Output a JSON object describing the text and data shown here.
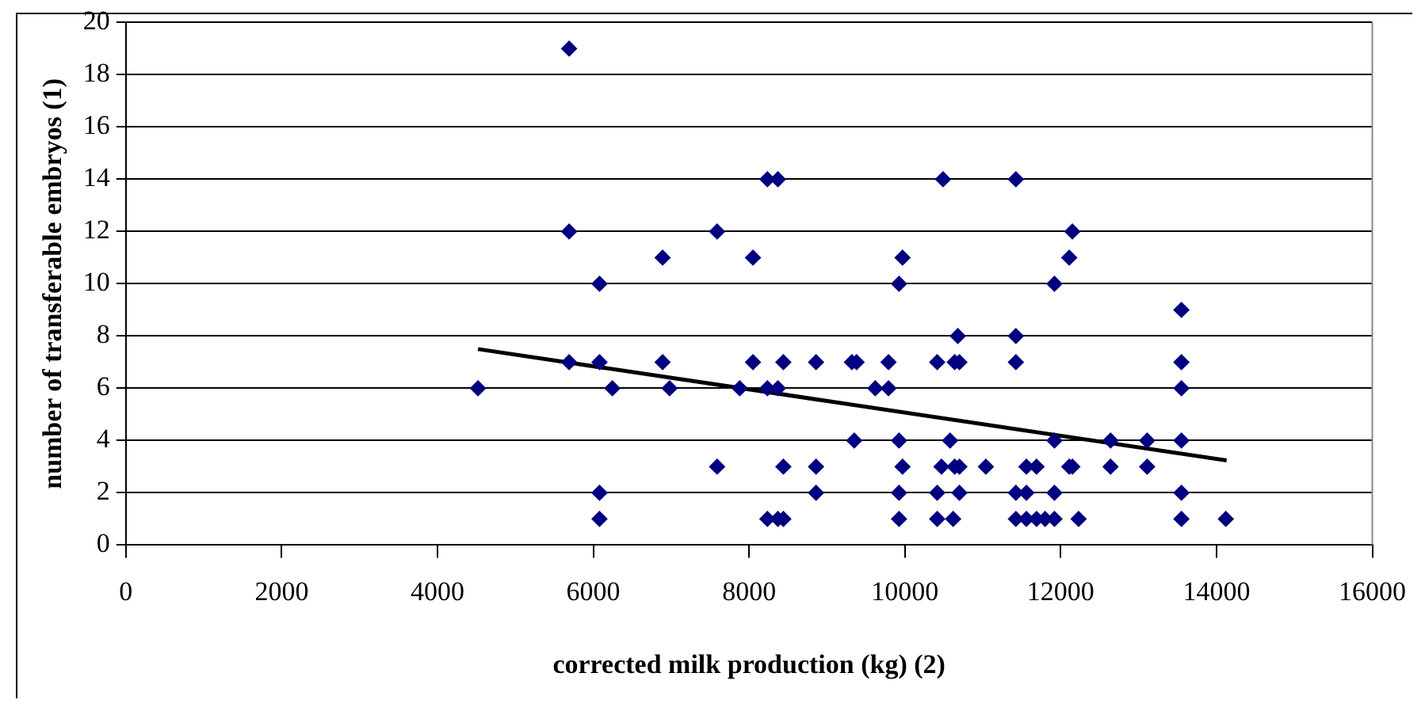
{
  "chart_data": {
    "type": "scatter",
    "xlabel": "corrected milk production (kg) (2)",
    "ylabel": "number of transferable embryos (1)",
    "xlim": [
      0,
      16000
    ],
    "xticks": [
      0,
      2000,
      4000,
      6000,
      8000,
      10000,
      12000,
      14000,
      16000
    ],
    "ylim": [
      0,
      20
    ],
    "yticks": [
      0,
      2,
      4,
      6,
      8,
      10,
      12,
      14,
      16,
      18,
      20
    ],
    "grid": "y",
    "legend": false,
    "marker": "diamond",
    "series": [
      {
        "color": "#000080",
        "x": [
          4520,
          5690,
          5690,
          5690,
          6080,
          6080,
          6080,
          6080,
          6245,
          6890,
          6890,
          6980,
          7590,
          7590,
          7880,
          8050,
          8050,
          8235,
          8370,
          8235,
          8370,
          8235,
          8370,
          8440,
          8440,
          8440,
          8860,
          8860,
          8860,
          9320,
          9380,
          9350,
          9620,
          9790,
          9790,
          9970,
          9925,
          9925,
          9970,
          9925,
          9925,
          10490,
          10415,
          10640,
          10700,
          10680,
          10580,
          10470,
          10640,
          10700,
          10415,
          10700,
          10415,
          10620,
          11040,
          11425,
          11425,
          11425,
          11425,
          11560,
          11425,
          11560,
          11690,
          11800,
          11920,
          11560,
          11690,
          11920,
          11920,
          11920,
          12110,
          12150,
          12110,
          12150,
          12230,
          12640,
          12640,
          13110,
          13110,
          13550,
          13550,
          13550,
          13550,
          13550,
          13550,
          14120
        ],
        "values": [
          6,
          19,
          12,
          7,
          10,
          7,
          2,
          1,
          6,
          11,
          7,
          6,
          12,
          3,
          6,
          11,
          7,
          14,
          14,
          6,
          6,
          1,
          1,
          1,
          7,
          3,
          7,
          3,
          2,
          7,
          7,
          4,
          6,
          6,
          7,
          11,
          10,
          4,
          3,
          2,
          1,
          14,
          7,
          7,
          7,
          8,
          4,
          3,
          3,
          3,
          2,
          2,
          1,
          1,
          3,
          14,
          8,
          7,
          2,
          2,
          1,
          1,
          1,
          1,
          1,
          3,
          3,
          10,
          4,
          2,
          11,
          12,
          3,
          3,
          1,
          4,
          3,
          4,
          3,
          9,
          7,
          6,
          4,
          2,
          1,
          1
        ]
      },
      {
        "type": "line",
        "color": "#000000",
        "marker": "none",
        "x": [
          4520,
          14130
        ],
        "values": [
          7.5,
          3.24
        ]
      }
    ]
  }
}
